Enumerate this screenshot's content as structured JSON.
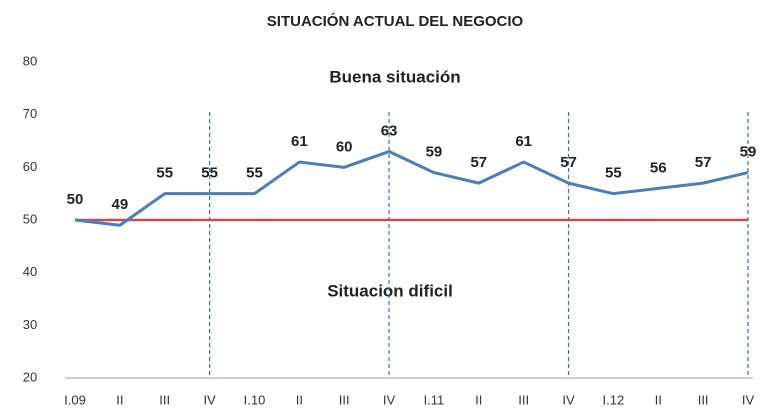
{
  "chart_data": {
    "type": "line",
    "title": "SITUACIÓN ACTUAL DEL NEGOCIO",
    "annotations": [
      "Buena situación",
      "Situacion dificil"
    ],
    "categories": [
      "I.09",
      "II",
      "III",
      "IV",
      "I.10",
      "II",
      "III",
      "IV",
      "I.11",
      "II",
      "III",
      "IV",
      "I.12",
      "II",
      "III",
      "IV"
    ],
    "values": [
      50,
      49,
      55,
      55,
      55,
      61,
      60,
      63,
      59,
      57,
      61,
      57,
      55,
      56,
      57,
      59
    ],
    "color": "#4a7ebb",
    "reference_line": {
      "value": 50,
      "color": "#c0504d"
    },
    "divider_color": "#2e6fcf",
    "ylim": [
      20,
      80
    ],
    "yticks": [
      20,
      30,
      40,
      50,
      60,
      70,
      80
    ],
    "grid": false
  }
}
